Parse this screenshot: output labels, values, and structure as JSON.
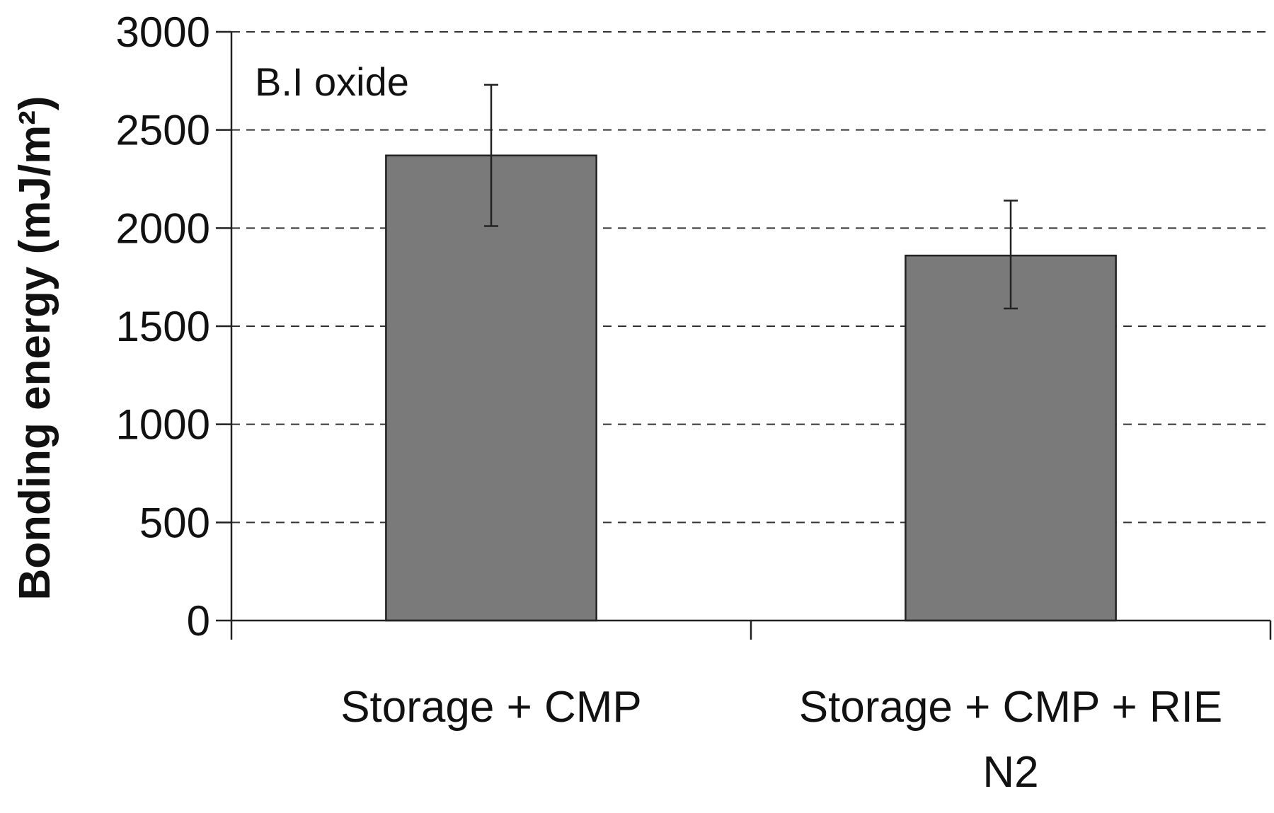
{
  "chart_data": {
    "type": "bar",
    "title": "",
    "annotation": "B.I oxide",
    "xlabel": "",
    "ylabel": "Bonding energy (mJ/m²)",
    "ylim": [
      0,
      3000
    ],
    "yticks": [
      0,
      500,
      1000,
      1500,
      2000,
      2500,
      3000
    ],
    "grid": true,
    "categories": [
      [
        "Storage + CMP"
      ],
      [
        "Storage + CMP + RIE",
        "N2"
      ]
    ],
    "values": [
      2370,
      1860
    ],
    "error_low": [
      2010,
      1590
    ],
    "error_high": [
      2730,
      2140
    ],
    "bar_color": "#7a7a7a"
  }
}
